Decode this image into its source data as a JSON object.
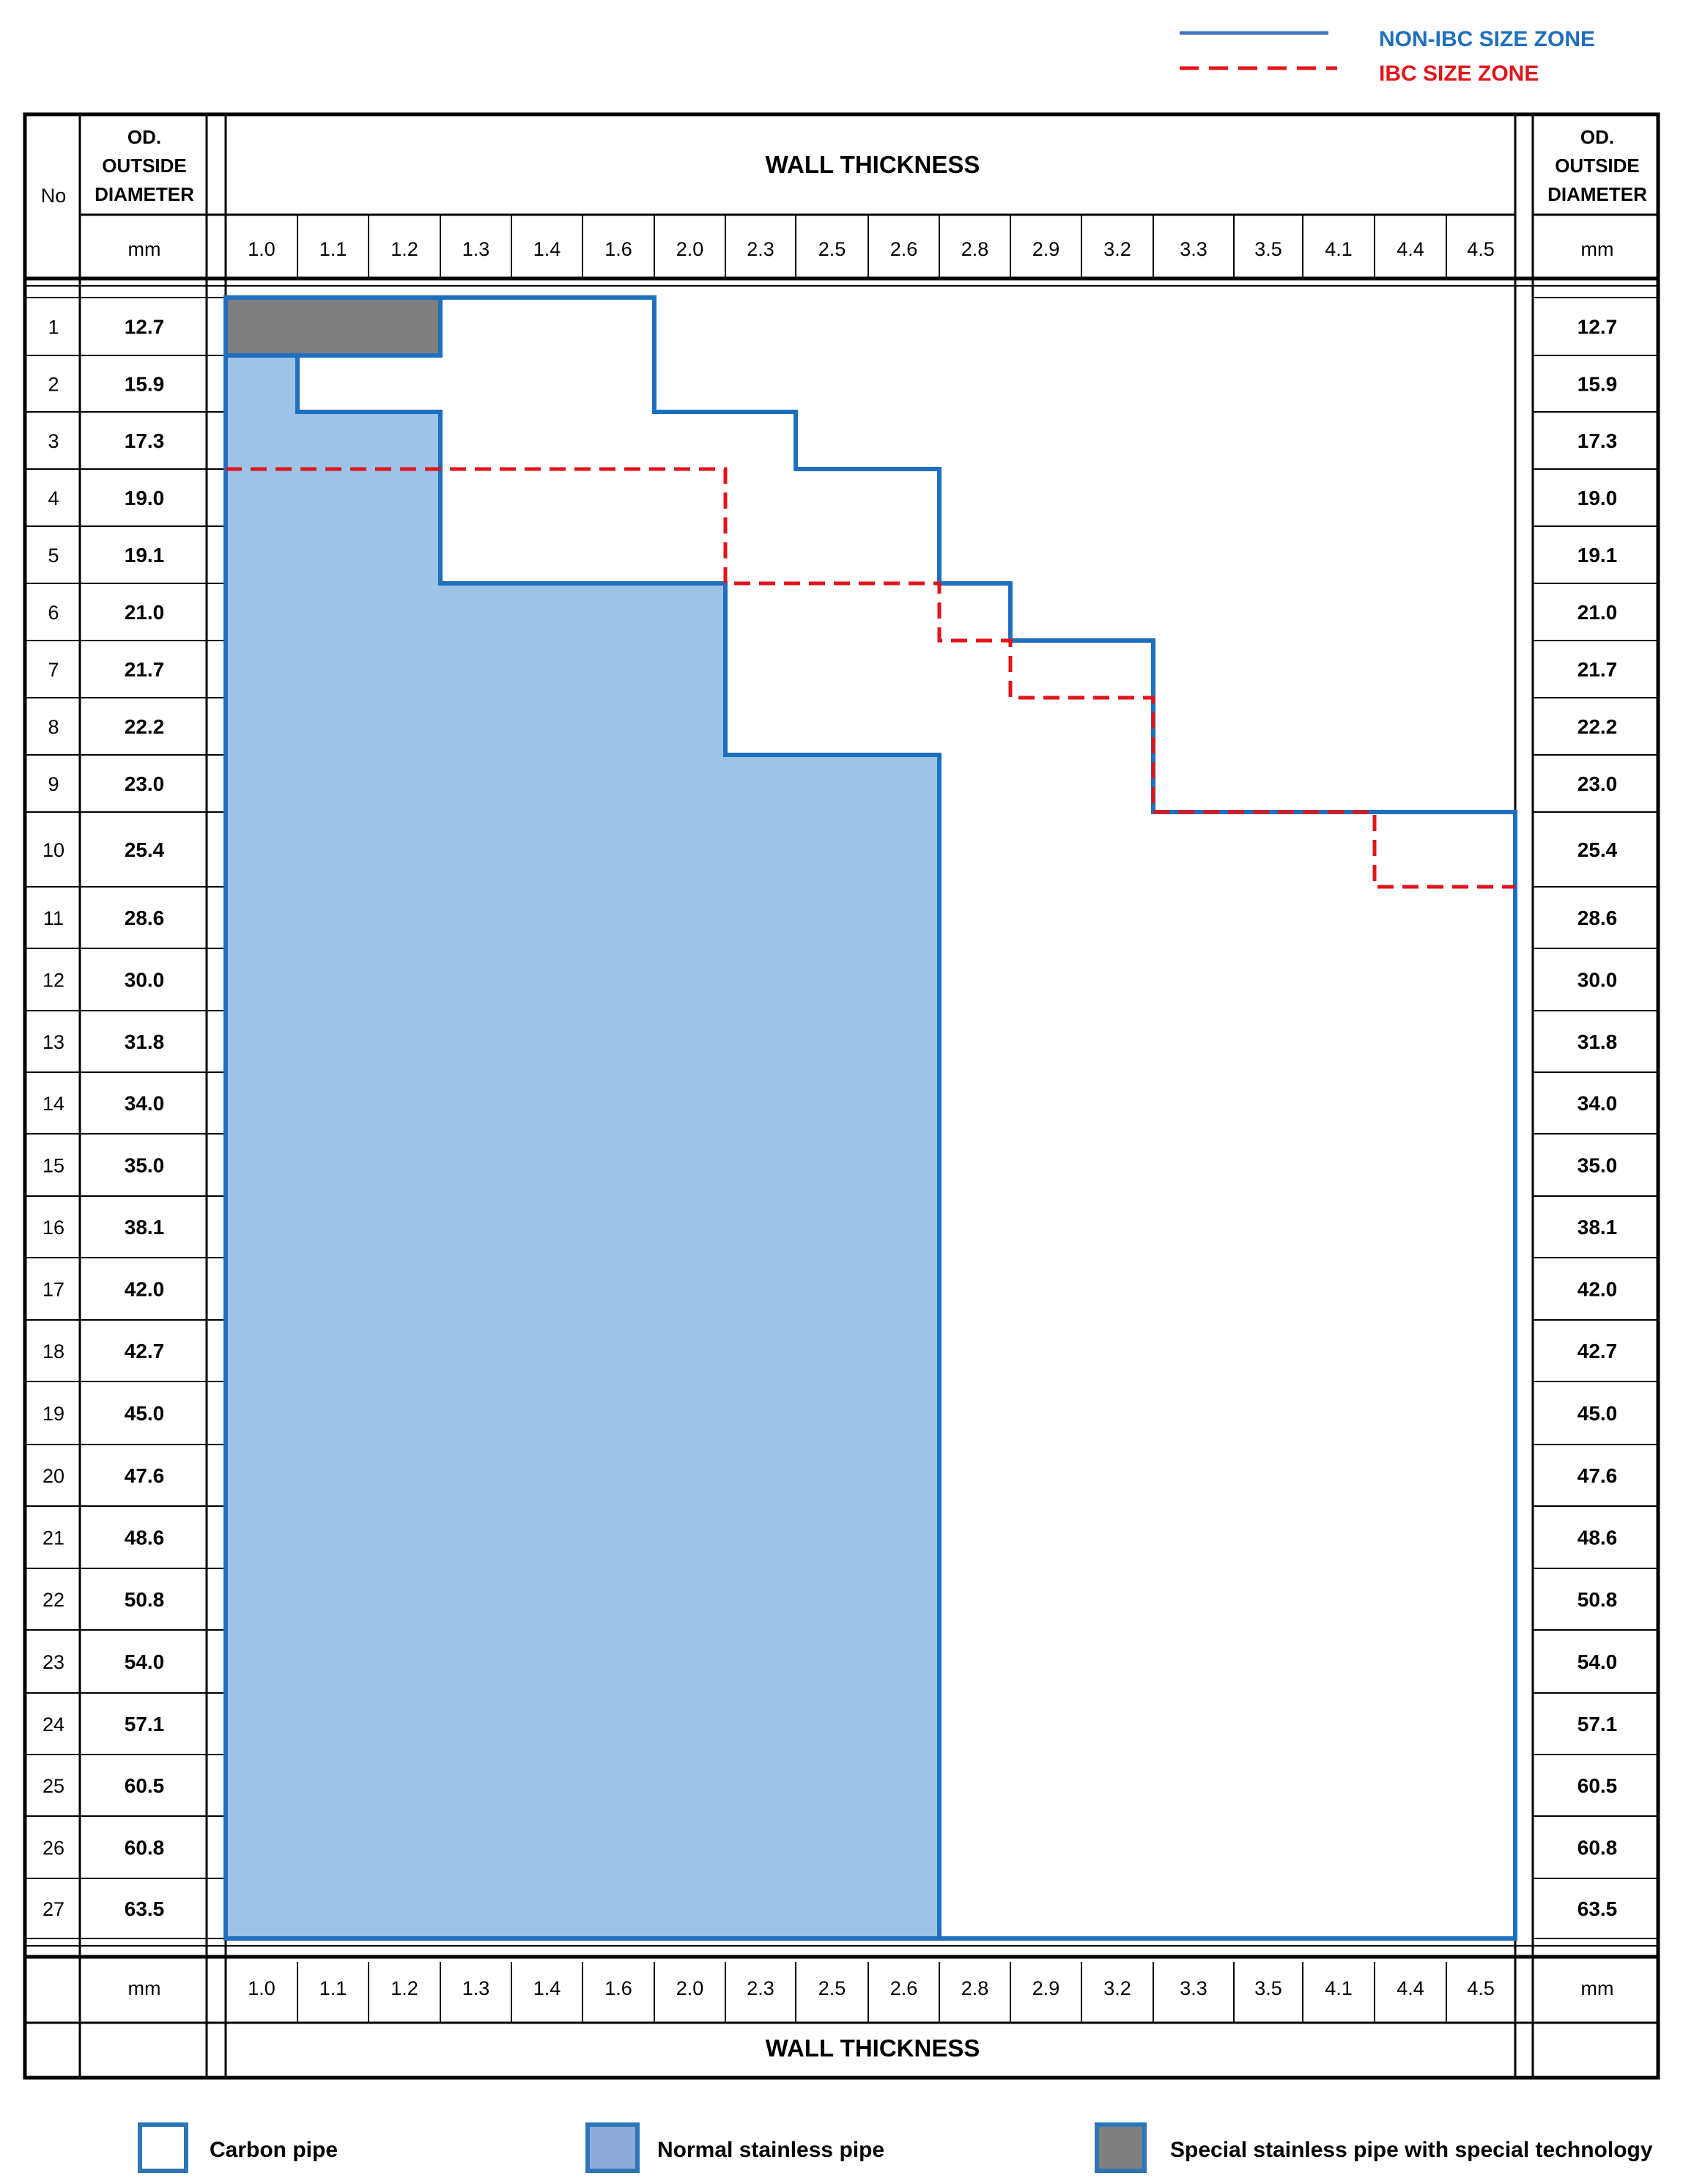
{
  "legend_lines": [
    {
      "label": "NON-IBC SIZE ZONE",
      "color": "#1f6fbf",
      "style": "solid"
    },
    {
      "label": "IBC SIZE ZONE",
      "color": "#e0161b",
      "style": "dashed"
    }
  ],
  "header": {
    "no_label": "No",
    "od_label_lines": [
      "OD.",
      "OUTSIDE",
      "DIAMETER"
    ],
    "unit_label": "mm",
    "wall_thickness_label": "WALL THICKNESS"
  },
  "wall_thicknesses": [
    "1.0",
    "1.1",
    "1.2",
    "1.3",
    "1.4",
    "1.6",
    "2.0",
    "2.3",
    "2.5",
    "2.6",
    "2.8",
    "2.9",
    "3.2",
    "3.3",
    "3.5",
    "4.1",
    "4.4",
    "4.5"
  ],
  "rows": [
    {
      "no": "1",
      "od": "12.7"
    },
    {
      "no": "2",
      "od": "15.9"
    },
    {
      "no": "3",
      "od": "17.3"
    },
    {
      "no": "4",
      "od": "19.0"
    },
    {
      "no": "5",
      "od": "19.1"
    },
    {
      "no": "6",
      "od": "21.0"
    },
    {
      "no": "7",
      "od": "21.7"
    },
    {
      "no": "8",
      "od": "22.2"
    },
    {
      "no": "9",
      "od": "23.0"
    },
    {
      "no": "10",
      "od": "25.4"
    },
    {
      "no": "11",
      "od": "28.6"
    },
    {
      "no": "12",
      "od": "30.0"
    },
    {
      "no": "13",
      "od": "31.8"
    },
    {
      "no": "14",
      "od": "34.0"
    },
    {
      "no": "15",
      "od": "35.0"
    },
    {
      "no": "16",
      "od": "38.1"
    },
    {
      "no": "17",
      "od": "42.0"
    },
    {
      "no": "18",
      "od": "42.7"
    },
    {
      "no": "19",
      "od": "45.0"
    },
    {
      "no": "20",
      "od": "47.6"
    },
    {
      "no": "21",
      "od": "48.6"
    },
    {
      "no": "22",
      "od": "50.8"
    },
    {
      "no": "23",
      "od": "54.0"
    },
    {
      "no": "24",
      "od": "57.1"
    },
    {
      "no": "25",
      "od": "60.5"
    },
    {
      "no": "26",
      "od": "60.8"
    },
    {
      "no": "27",
      "od": "63.5"
    }
  ],
  "zones": {
    "special_stainless_max_wt_index": [
      3,
      0
    ],
    "normal_stainless_max_wt_index": [
      0,
      1,
      3,
      3,
      3,
      7,
      7,
      7,
      10,
      10,
      10,
      10,
      10,
      10,
      10,
      10,
      10,
      10,
      10,
      10,
      10,
      10,
      10,
      10,
      10,
      10,
      10
    ],
    "non_ibc_max_wt_index": [
      6,
      6,
      8,
      10,
      10,
      11,
      13,
      13,
      13,
      18,
      18,
      18,
      18,
      18,
      18,
      18,
      18,
      18,
      18,
      18,
      18,
      18,
      18,
      18,
      18,
      18,
      18
    ],
    "ibc_max_wt_index": [
      null,
      null,
      null,
      7,
      7,
      10,
      11,
      13,
      13,
      16,
      18
    ]
  },
  "colors": {
    "carbon_outline": "#1f6fbf",
    "normal_stainless_fill": "#9dc3e6",
    "special_stainless_fill": "#7f7f7f",
    "ibc_line": "#e0161b"
  },
  "legend_boxes": [
    {
      "label": "Carbon pipe",
      "fill": "#ffffff"
    },
    {
      "label": "Normal stainless pipe",
      "fill": "#9dc3e6"
    },
    {
      "label": "Special stainless pipe with special technology",
      "fill": "#7f7f7f"
    }
  ]
}
